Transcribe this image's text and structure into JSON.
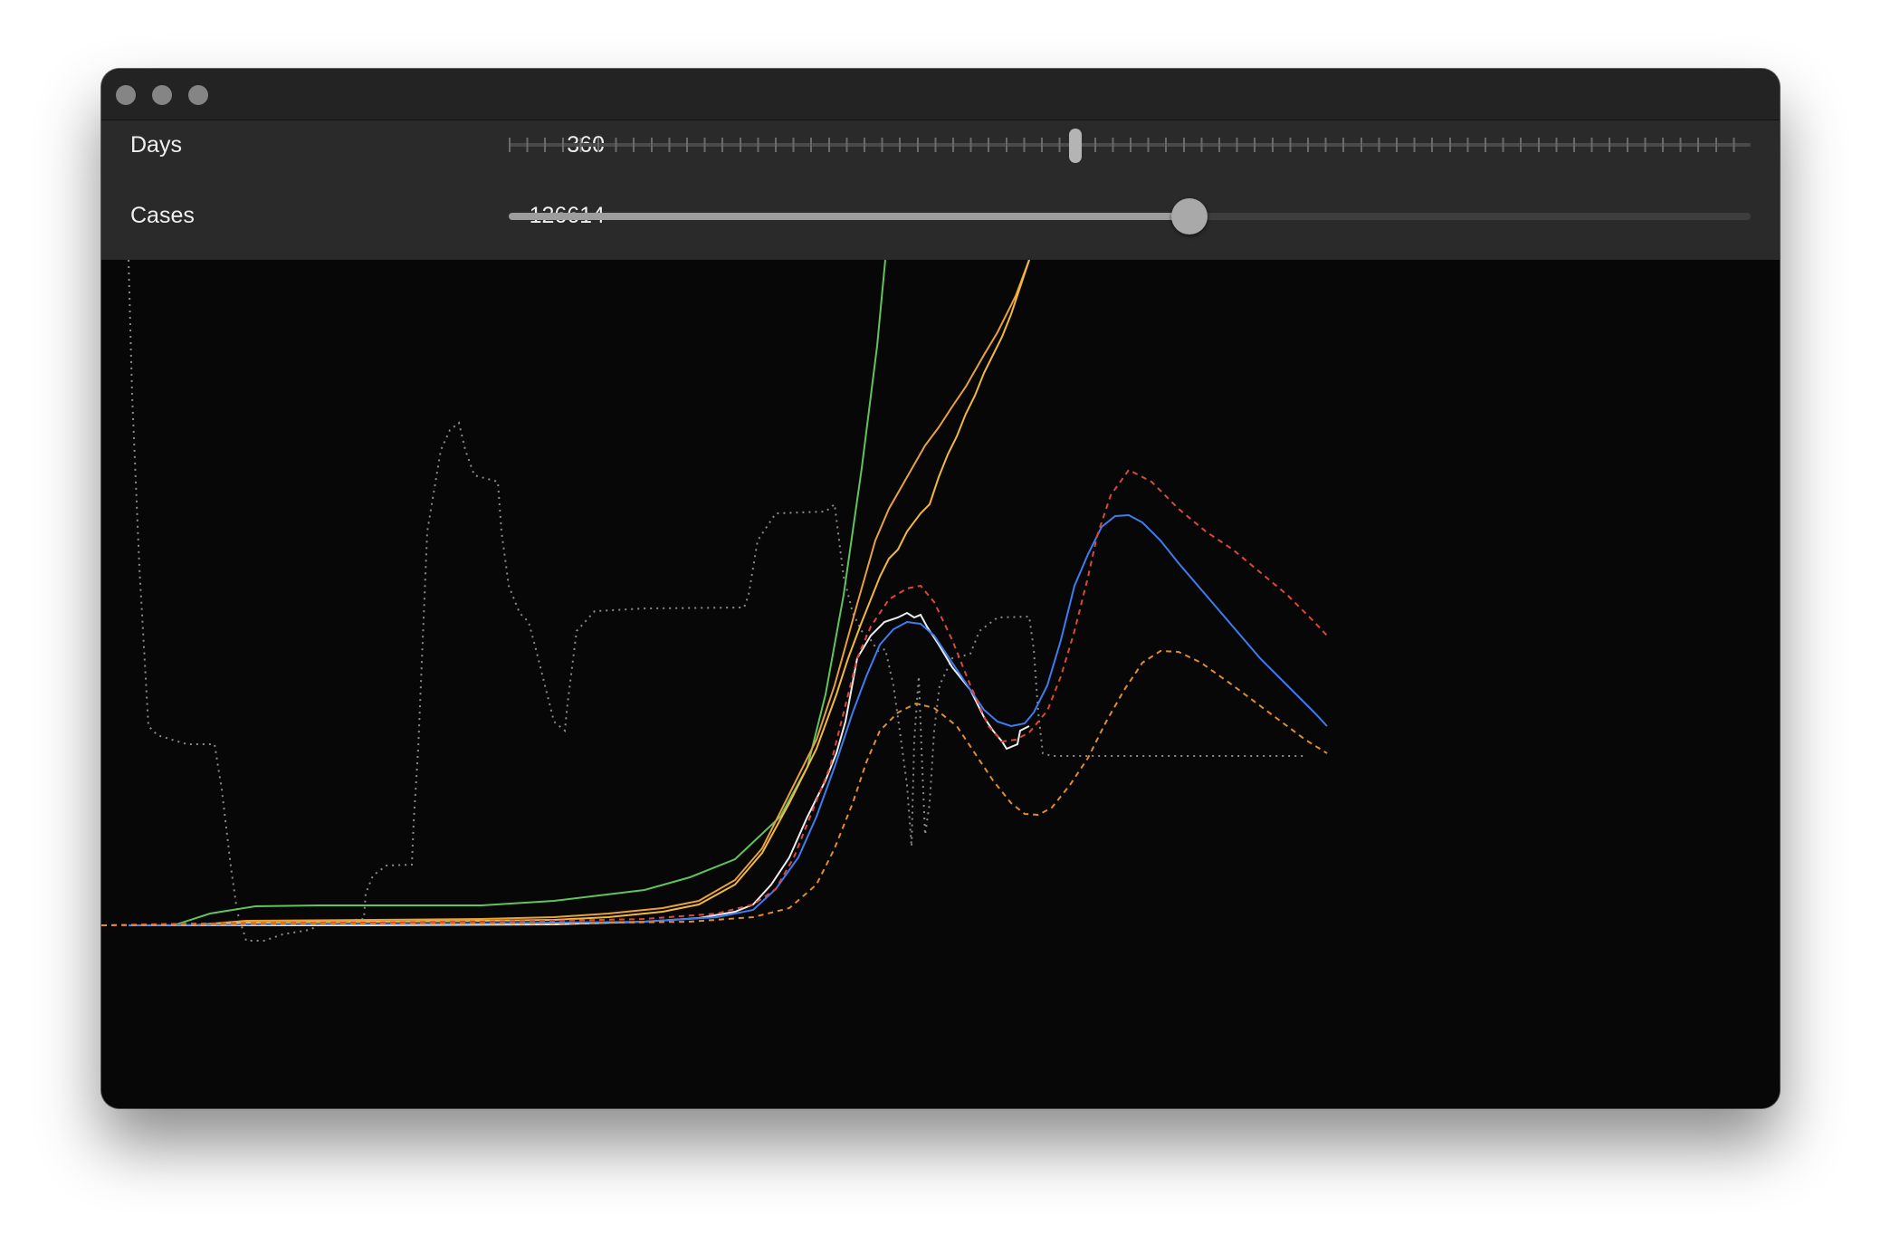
{
  "window": {
    "buttons": [
      {
        "name": "close",
        "icon": "close-dot-icon"
      },
      {
        "name": "minimize",
        "icon": "minimize-dot-icon"
      },
      {
        "name": "zoom",
        "icon": "zoom-dot-icon"
      }
    ]
  },
  "controls": {
    "days": {
      "label": "Days",
      "value": "360",
      "position": 0.456
    },
    "cases": {
      "label": "Cases",
      "value": "126614",
      "position": 0.548
    }
  },
  "chart_data": {
    "type": "line",
    "title": "",
    "xlabel": "",
    "ylabel": "",
    "grid": false,
    "legend": "none",
    "series": [
      {
        "style": "dotted",
        "color": "#8a8a8a"
      },
      {
        "style": "solid",
        "color": "#5fc45c"
      },
      {
        "style": "solid",
        "color": "#e9a13c"
      },
      {
        "style": "solid",
        "color": "#f3b93a"
      },
      {
        "style": "solid",
        "color": "#ededed"
      },
      {
        "style": "solid",
        "color": "#3d7df0"
      },
      {
        "style": "dashed",
        "color": "#d9483b"
      },
      {
        "style": "dashed",
        "color": "#e08d2a"
      }
    ]
  }
}
